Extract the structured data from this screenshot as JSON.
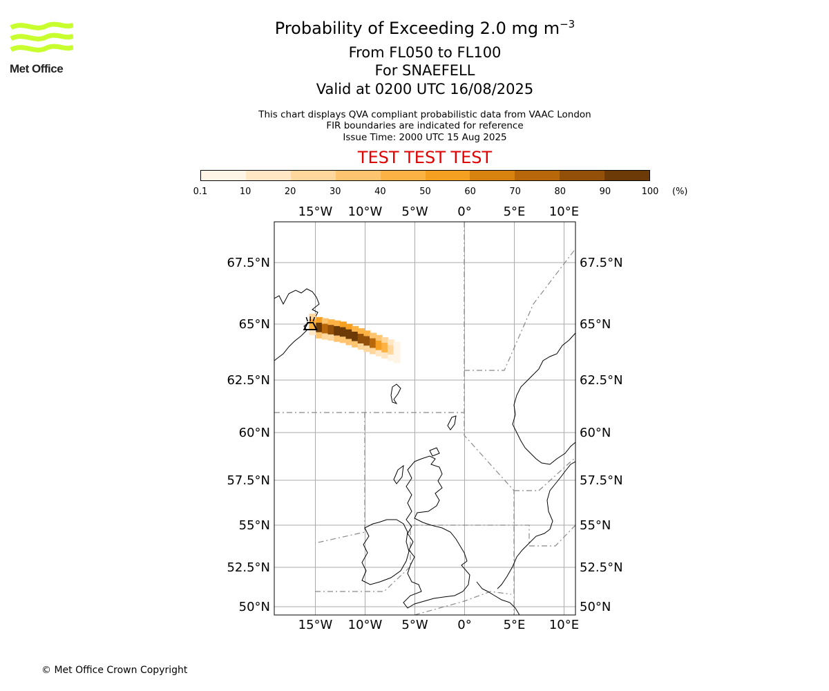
{
  "logo": {
    "text": "Met Office",
    "color": "#c8ff2e"
  },
  "title": {
    "main": "Probability of Exceeding 2.0 mg m",
    "superscript": "−3",
    "line2": "From FL050 to FL100",
    "line3": "For SNAEFELL",
    "line4": "Valid at 0200 UTC 16/08/2025"
  },
  "notes": {
    "line1": "This chart displays QVA compliant probabilistic data from VAAC London",
    "line2": "FIR boundaries are indicated for reference",
    "line3": "Issue Time: 2000 UTC 15 Aug 2025"
  },
  "banner": "TEST TEST TEST",
  "colorbar": {
    "ticks": [
      "0.1",
      "10",
      "20",
      "30",
      "40",
      "50",
      "60",
      "70",
      "80",
      "90",
      "100"
    ],
    "unit": "(%)",
    "colors": [
      "#fff5e6",
      "#ffe6c4",
      "#ffd69c",
      "#ffc470",
      "#fdb244",
      "#f5a021",
      "#d8830f",
      "#b8680a",
      "#935008",
      "#6b3a06"
    ]
  },
  "map": {
    "lon_labels": [
      "15°W",
      "10°W",
      "5°W",
      "0°",
      "5°E",
      "10°E"
    ],
    "lat_labels": [
      "67.5°N",
      "65°N",
      "62.5°N",
      "60°N",
      "57.5°N",
      "55°N",
      "52.5°N",
      "50°N"
    ],
    "extent": {
      "lon_min": -19,
      "lon_max": 11,
      "lat_min": 49.8,
      "lat_max": 69
    },
    "volcano": {
      "name": "Snaefell",
      "lon": -15.5,
      "lat": 65.0
    },
    "plume": [
      {
        "lon": -15.3,
        "lat": 65.0,
        "prob": 40
      },
      {
        "lon": -14.6,
        "lat": 64.85,
        "prob": 95
      },
      {
        "lon": -14.0,
        "lat": 64.8,
        "prob": 70
      },
      {
        "lon": -13.4,
        "lat": 64.75,
        "prob": 85
      },
      {
        "lon": -12.8,
        "lat": 64.7,
        "prob": 90
      },
      {
        "lon": -12.2,
        "lat": 64.65,
        "prob": 95
      },
      {
        "lon": -11.6,
        "lat": 64.55,
        "prob": 95
      },
      {
        "lon": -11.0,
        "lat": 64.45,
        "prob": 90
      },
      {
        "lon": -10.4,
        "lat": 64.35,
        "prob": 85
      },
      {
        "lon": -9.8,
        "lat": 64.25,
        "prob": 80
      },
      {
        "lon": -9.2,
        "lat": 64.15,
        "prob": 70
      },
      {
        "lon": -8.6,
        "lat": 64.05,
        "prob": 55
      },
      {
        "lon": -8.0,
        "lat": 63.95,
        "prob": 40
      },
      {
        "lon": -7.4,
        "lat": 63.85,
        "prob": 20
      },
      {
        "lon": -6.8,
        "lat": 63.75,
        "prob": 8
      }
    ]
  },
  "copyright": "© Met Office Crown Copyright"
}
